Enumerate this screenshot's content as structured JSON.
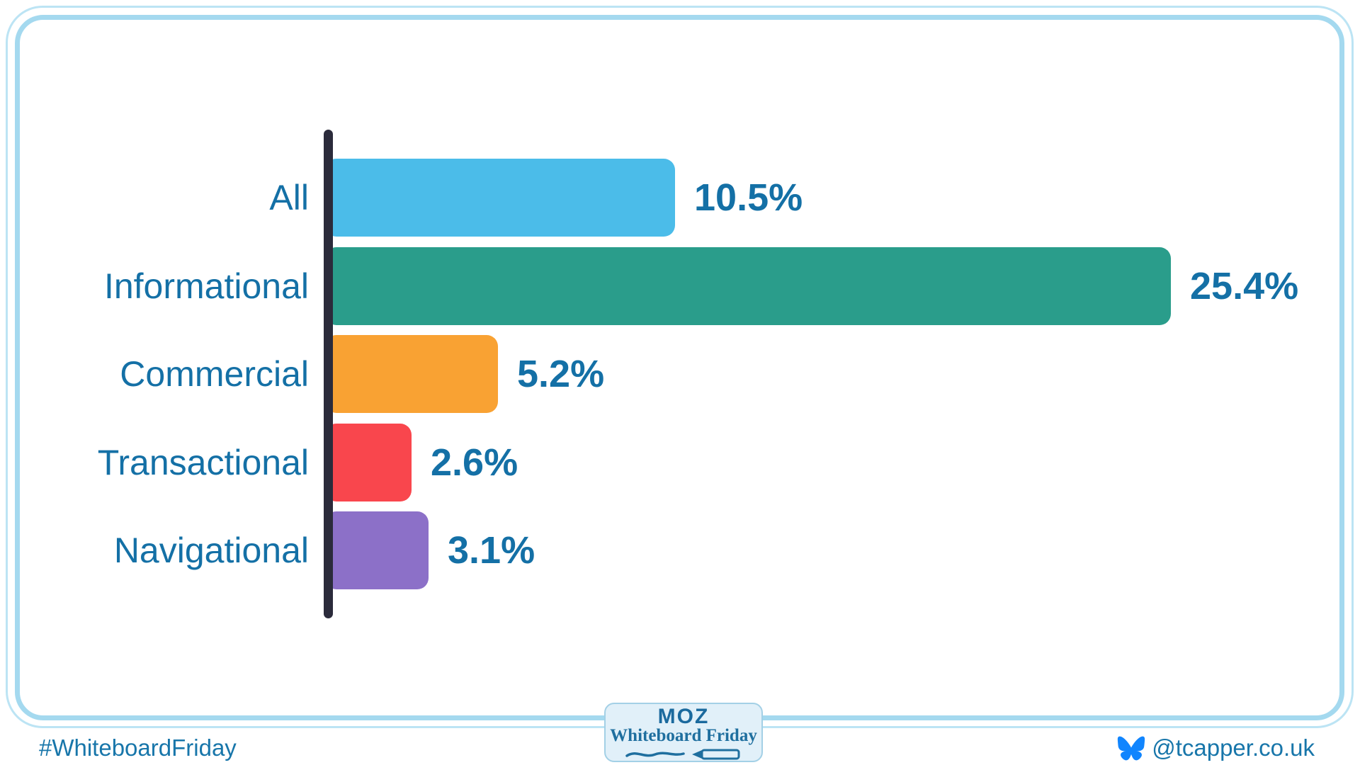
{
  "chart_data": {
    "type": "bar",
    "orientation": "horizontal",
    "title": "",
    "xlabel": "",
    "ylabel": "",
    "xlim": [
      0,
      25.4
    ],
    "grid": false,
    "legend": "none",
    "categories": [
      "All",
      "Informational",
      "Commercial",
      "Transactional",
      "Navigational"
    ],
    "values": [
      10.5,
      25.4,
      5.2,
      2.6,
      3.1
    ],
    "value_labels": [
      "10.5%",
      "25.4%",
      "5.2%",
      "2.6%",
      "3.1%"
    ],
    "bar_colors": [
      "#4bbce9",
      "#2a9d8b",
      "#f9a233",
      "#f9464d",
      "#8c70c8"
    ]
  },
  "footer": {
    "hashtag": "#WhiteboardFriday",
    "handle": "@tcapper.co.uk",
    "badge": {
      "brand": "MOZ",
      "series": "Whiteboard Friday"
    }
  },
  "icons": {
    "bluesky_butterfly": "bluesky-butterfly-icon",
    "marker_scribble": "marker-scribble-icon"
  },
  "colors": {
    "label_text": "#1470a6",
    "axis": "#2b2b3b",
    "frame": "#a4d9ef",
    "badge_background": "#e1f0f9",
    "badge_border": "#a3d0e6",
    "badge_text": "#1b6a9e",
    "bluesky_blue": "#1185fe",
    "footer_text": "#1876aa"
  }
}
